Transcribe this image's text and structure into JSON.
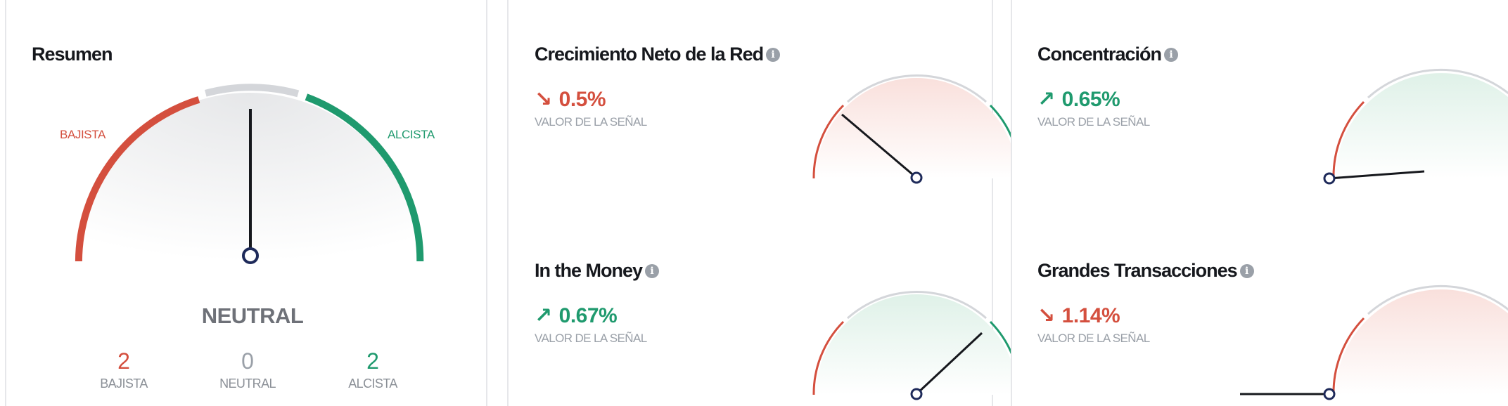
{
  "summary": {
    "title": "Resumen",
    "left_label": "BAJISTA",
    "right_label": "ALCISTA",
    "verdict": "NEUTRAL",
    "counts": [
      {
        "value": "2",
        "label": "BAJISTA"
      },
      {
        "value": "0",
        "label": "NEUTRAL"
      },
      {
        "value": "2",
        "label": "ALCISTA"
      }
    ]
  },
  "indicators": {
    "net_growth": {
      "title": "Crecimiento Neto de la Red",
      "value": "0.5%",
      "direction": "down",
      "value_label": "VALOR DE LA SEÑAL"
    },
    "concentration": {
      "title": "Concentración",
      "value": "0.65%",
      "direction": "up",
      "value_label": "VALOR DE LA SEÑAL"
    },
    "in_the_money": {
      "title": "In the Money",
      "value": "0.67%",
      "direction": "up",
      "value_label": "VALOR DE LA SEÑAL"
    },
    "large_tx": {
      "title": "Grandes Transacciones",
      "value": "1.14%",
      "direction": "down",
      "value_label": "VALOR DE LA SEÑAL"
    }
  },
  "icons": {
    "info": "info-icon",
    "arrow_down": "arrow-down-right-icon",
    "arrow_up": "arrow-up-right-icon"
  },
  "colors": {
    "bearish": "#d44f3e",
    "bullish": "#1f9a6e",
    "neutral": "#d4d6da",
    "needle": "#16181d",
    "pivot": "#1e2a5a"
  }
}
